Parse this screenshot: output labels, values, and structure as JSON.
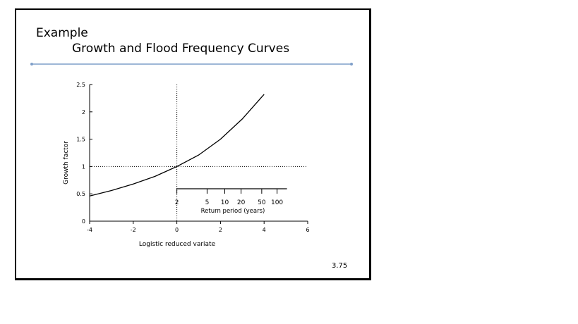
{
  "slide": {
    "title_line1": "Example",
    "title_line2": "Growth and Flood Frequency Curves",
    "page_number": "3.75",
    "rule_color": "#7f9fc9"
  },
  "chart_data": {
    "type": "line",
    "xlabel": "Logistic reduced variate",
    "ylabel": "Growth factor",
    "xlim": [
      -4,
      6
    ],
    "ylim": [
      0,
      2.5
    ],
    "x_ticks": [
      "-4",
      "-2",
      "0",
      "2",
      "4",
      "6"
    ],
    "y_ticks": [
      "0",
      "0.5",
      "1",
      "1.5",
      "2",
      "2.5"
    ],
    "series": [
      {
        "x": [
          -4,
          -3,
          -2,
          -1,
          0,
          1,
          2,
          3,
          4
        ],
        "y": [
          0.46,
          0.56,
          0.68,
          0.82,
          1.0,
          1.21,
          1.5,
          1.87,
          2.32
        ]
      }
    ],
    "reference_lines": {
      "x": 0,
      "y": 1
    },
    "secondary_axis": {
      "label": "Return period (years)",
      "ticks": [
        "2",
        "5",
        "10",
        "20",
        "50",
        "100"
      ],
      "tick_values": [
        2,
        5,
        10,
        20,
        50,
        100
      ]
    }
  }
}
